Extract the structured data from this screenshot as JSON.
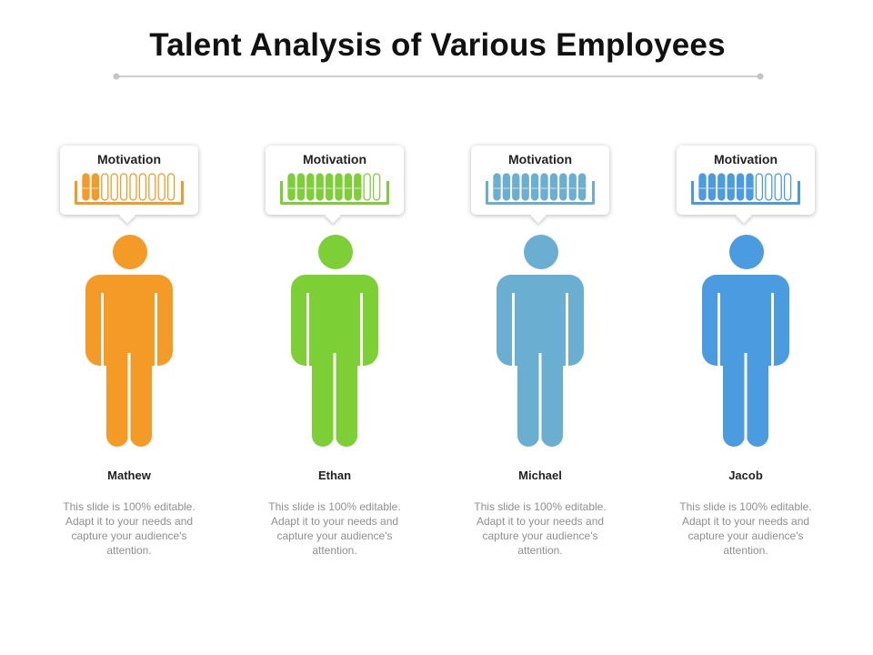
{
  "title": "Talent Analysis of Various Employees",
  "employees": [
    {
      "name": "Mathew",
      "label": "Motivation",
      "level": 2,
      "segments": 10,
      "color": "#f39a27",
      "description": "This slide is 100% editable. Adapt it to your needs and capture your audience's attention."
    },
    {
      "name": "Ethan",
      "label": "Motivation",
      "level": 8,
      "segments": 10,
      "color": "#7ccf35",
      "description": "This slide is 100% editable. Adapt it to your needs and capture your audience's attention."
    },
    {
      "name": "Michael",
      "label": "Motivation",
      "level": 10,
      "segments": 10,
      "color": "#6aaed1",
      "description": "This slide is 100% editable. Adapt it to your needs and capture your audience's attention."
    },
    {
      "name": "Jacob",
      "label": "Motivation",
      "level": 6,
      "segments": 10,
      "color": "#4b9be0",
      "description": "This slide is 100% editable. Adapt it to your needs and capture your audience's attention."
    }
  ]
}
